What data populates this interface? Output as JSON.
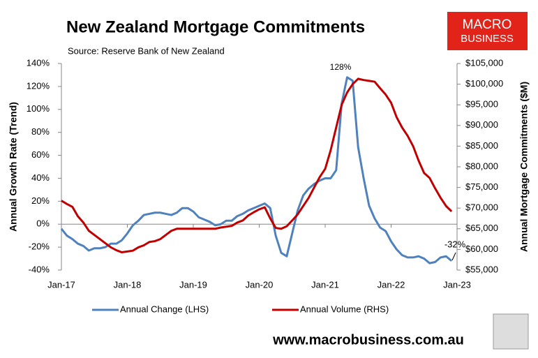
{
  "chart_data": {
    "type": "line",
    "title": "New Zealand Mortgage Commitments",
    "subtitle": "Source: Reserve Bank of New Zealand",
    "y_label": "Annual Growth Rate (Trend)",
    "y2_label": "Annual Mortgage Commitments ($M)",
    "logo": [
      "MACRO",
      "BUSINESS"
    ],
    "website": "www.macrobusiness.com.au",
    "annotations": [
      "128%",
      "-32%"
    ],
    "categories": [
      "Jan-17",
      null,
      null,
      null,
      null,
      null,
      null,
      null,
      null,
      null,
      null,
      null,
      "Jan-18",
      null,
      null,
      null,
      null,
      null,
      null,
      null,
      null,
      null,
      null,
      null,
      "Jan-19",
      null,
      null,
      null,
      null,
      null,
      null,
      null,
      null,
      null,
      null,
      null,
      "Jan-20",
      null,
      null,
      null,
      null,
      null,
      null,
      null,
      null,
      null,
      null,
      null,
      "Jan-21",
      null,
      null,
      null,
      null,
      null,
      null,
      null,
      null,
      null,
      null,
      null,
      "Jan-22",
      null,
      null,
      null,
      null,
      null,
      null,
      null,
      null,
      null,
      null,
      null,
      "Jan-23"
    ],
    "series": [
      {
        "name": "Annual Change (LHS)",
        "color": "#4f81bd",
        "axis": "y",
        "values": [
          -4,
          -10,
          -13,
          -17,
          -19,
          -23,
          -21,
          -21,
          -20,
          -17,
          -17,
          -14,
          -8,
          -1,
          3,
          8,
          9,
          10,
          10,
          9,
          8,
          10,
          14,
          14,
          11,
          6,
          4,
          2,
          -1,
          0,
          3,
          3,
          7,
          9,
          12,
          14,
          16,
          18,
          14,
          -10,
          -25,
          -28,
          -8,
          12,
          25,
          31,
          35,
          38,
          40,
          40,
          47,
          105,
          128,
          125,
          67,
          40,
          16,
          5,
          -3,
          -6,
          -15,
          -22,
          -27,
          -29,
          -29,
          -28,
          -30,
          -34,
          -33,
          -29,
          -28,
          -32,
          null
        ]
      },
      {
        "name": "Annual Volume (RHS)",
        "color": "#c00000",
        "axis": "y2",
        "values": [
          71800,
          71000,
          70300,
          68000,
          66500,
          64500,
          63500,
          62500,
          61500,
          60500,
          59800,
          59300,
          59500,
          59700,
          60500,
          61000,
          61800,
          62000,
          62500,
          63500,
          64500,
          65000,
          65000,
          65000,
          65000,
          65000,
          65000,
          65000,
          65000,
          65300,
          65500,
          65700,
          66500,
          67000,
          68200,
          69000,
          69700,
          70200,
          67500,
          65200,
          65000,
          65600,
          67000,
          68500,
          70500,
          72500,
          75000,
          77500,
          79500,
          84000,
          89500,
          95000,
          98000,
          100000,
          101300,
          101000,
          100800,
          100600,
          99000,
          97500,
          95500,
          92000,
          89500,
          87500,
          85000,
          81500,
          78500,
          77300,
          74800,
          72500,
          70500,
          69200,
          null
        ]
      }
    ],
    "ylim": [
      -40,
      140
    ],
    "yticks": [
      {
        "value": -40,
        "label": "-40%"
      },
      {
        "value": -20,
        "label": "-20%"
      },
      {
        "value": 0,
        "label": "0%"
      },
      {
        "value": 20,
        "label": "20%"
      },
      {
        "value": 40,
        "label": "40%"
      },
      {
        "value": 60,
        "label": "60%"
      },
      {
        "value": 80,
        "label": "80%"
      },
      {
        "value": 100,
        "label": "100%"
      },
      {
        "value": 120,
        "label": "120%"
      },
      {
        "value": 140,
        "label": "140%"
      }
    ],
    "y2lim": [
      55000,
      105000
    ],
    "y2ticks": [
      {
        "value": 55000,
        "label": "$55,000"
      },
      {
        "value": 60000,
        "label": "$60,000"
      },
      {
        "value": 65000,
        "label": "$65,000"
      },
      {
        "value": 70000,
        "label": "$70,000"
      },
      {
        "value": 75000,
        "label": "$75,000"
      },
      {
        "value": 80000,
        "label": "$80,000"
      },
      {
        "value": 85000,
        "label": "$85,000"
      },
      {
        "value": 90000,
        "label": "$90,000"
      },
      {
        "value": 95000,
        "label": "$95,000"
      },
      {
        "value": 100000,
        "label": "$100,000"
      },
      {
        "value": 105000,
        "label": "$105,000"
      }
    ],
    "grid": false,
    "legend": "bottom"
  }
}
